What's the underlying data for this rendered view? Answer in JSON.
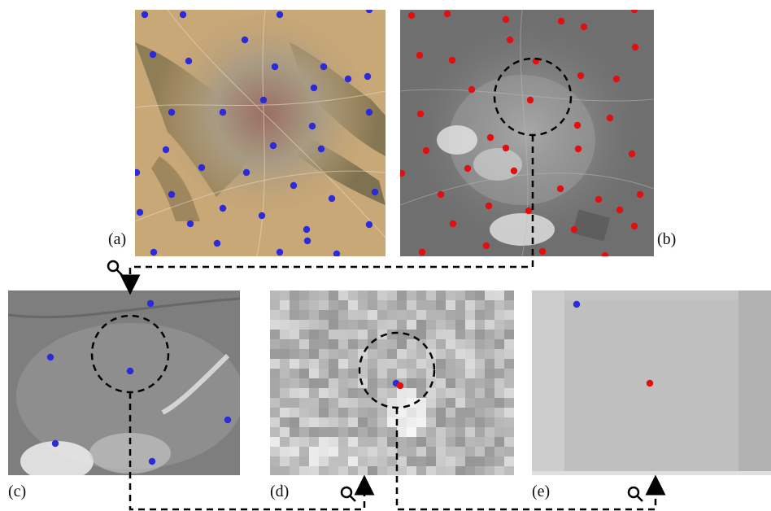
{
  "panels": {
    "a": {
      "label": "(a)",
      "type": "satellite color image",
      "point_color": "#2b2bd9"
    },
    "b": {
      "label": "(b)",
      "type": "grayscale satellite image",
      "point_color": "#e01010"
    },
    "c": {
      "label": "(c)",
      "type": "zoomed grayscale crop",
      "point_color": "#2b2bd9"
    },
    "d": {
      "label": "(d)",
      "type": "pixelated low-resolution crop",
      "point_colors": [
        "#2b2bd9",
        "#e01010"
      ]
    },
    "e": {
      "label": "(e)",
      "type": "further zoomed crop",
      "point_colors": [
        "#2b2bd9",
        "#e01010"
      ]
    }
  },
  "connectors": {
    "style": "dashed",
    "icon": "magnifier-icon"
  },
  "colors": {
    "blue": "#2b2bd9",
    "red": "#e01010",
    "line": "#000000"
  }
}
